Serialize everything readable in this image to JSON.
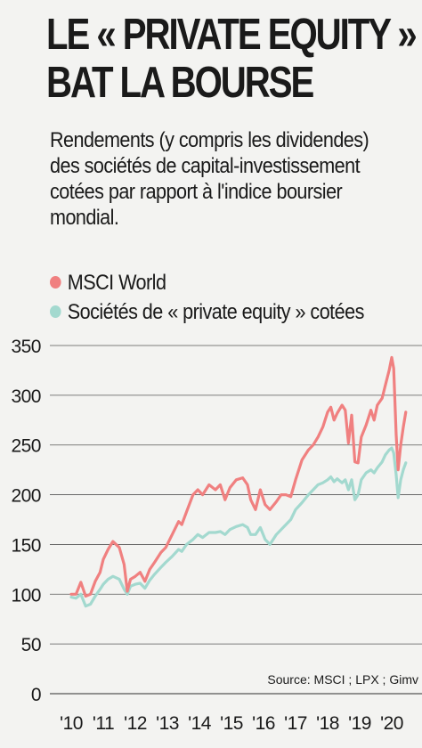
{
  "title_line1": "LE « PRIVATE EQUITY »",
  "title_line2": "BAT LA BOURSE",
  "subtitle": "Rendements (y compris les dividendes) des sociétés de capital-investissement cotées par rapport à l'indice boursier mondial.",
  "source": "Source: MSCI ; LPX ; Gimv",
  "colors": {
    "msci": "#f08080",
    "pe": "#a3d9cf",
    "grid": "#555555",
    "background": "#f3f3f1"
  },
  "chart_data": {
    "type": "line",
    "ylim": [
      0,
      350
    ],
    "yticks": [
      0,
      50,
      100,
      150,
      200,
      250,
      300,
      350
    ],
    "xlim": [
      2009.85,
      2020.5
    ],
    "xticks": [
      {
        "value": 2010,
        "label": "'10"
      },
      {
        "value": 2011,
        "label": "'11"
      },
      {
        "value": 2012,
        "label": "'12"
      },
      {
        "value": 2013,
        "label": "'13"
      },
      {
        "value": 2014,
        "label": "'14"
      },
      {
        "value": 2015,
        "label": "'15"
      },
      {
        "value": 2016,
        "label": "'16"
      },
      {
        "value": 2017,
        "label": "'17"
      },
      {
        "value": 2018,
        "label": "'18"
      },
      {
        "value": 2019,
        "label": "'19"
      },
      {
        "value": 2020,
        "label": "'20"
      }
    ],
    "grid": "horizontal",
    "legend": "top-left",
    "series": [
      {
        "name": "MSCI World",
        "color": "#f08080",
        "points": [
          [
            2010.0,
            100
          ],
          [
            2010.15,
            100
          ],
          [
            2010.3,
            112
          ],
          [
            2010.45,
            98
          ],
          [
            2010.6,
            100
          ],
          [
            2010.75,
            113
          ],
          [
            2010.9,
            122
          ],
          [
            2011.0,
            135
          ],
          [
            2011.15,
            145
          ],
          [
            2011.3,
            153
          ],
          [
            2011.5,
            147
          ],
          [
            2011.65,
            130
          ],
          [
            2011.75,
            103
          ],
          [
            2011.85,
            115
          ],
          [
            2012.0,
            118
          ],
          [
            2012.15,
            122
          ],
          [
            2012.3,
            113
          ],
          [
            2012.45,
            125
          ],
          [
            2012.6,
            132
          ],
          [
            2012.8,
            142
          ],
          [
            2012.95,
            147
          ],
          [
            2013.15,
            160
          ],
          [
            2013.35,
            173
          ],
          [
            2013.45,
            170
          ],
          [
            2013.6,
            183
          ],
          [
            2013.8,
            200
          ],
          [
            2013.95,
            205
          ],
          [
            2014.1,
            200
          ],
          [
            2014.3,
            210
          ],
          [
            2014.5,
            205
          ],
          [
            2014.65,
            210
          ],
          [
            2014.8,
            195
          ],
          [
            2014.95,
            207
          ],
          [
            2015.15,
            215
          ],
          [
            2015.35,
            217
          ],
          [
            2015.5,
            210
          ],
          [
            2015.6,
            195
          ],
          [
            2015.75,
            185
          ],
          [
            2015.9,
            205
          ],
          [
            2016.05,
            190
          ],
          [
            2016.2,
            185
          ],
          [
            2016.4,
            193
          ],
          [
            2016.55,
            200
          ],
          [
            2016.7,
            200
          ],
          [
            2016.85,
            198
          ],
          [
            2017.0,
            215
          ],
          [
            2017.2,
            235
          ],
          [
            2017.4,
            245
          ],
          [
            2017.55,
            250
          ],
          [
            2017.7,
            258
          ],
          [
            2017.85,
            268
          ],
          [
            2018.0,
            283
          ],
          [
            2018.1,
            288
          ],
          [
            2018.2,
            275
          ],
          [
            2018.3,
            282
          ],
          [
            2018.45,
            290
          ],
          [
            2018.55,
            285
          ],
          [
            2018.65,
            252
          ],
          [
            2018.75,
            280
          ],
          [
            2018.85,
            233
          ],
          [
            2018.95,
            232
          ],
          [
            2019.05,
            258
          ],
          [
            2019.2,
            270
          ],
          [
            2019.35,
            285
          ],
          [
            2019.45,
            275
          ],
          [
            2019.55,
            290
          ],
          [
            2019.7,
            297
          ],
          [
            2019.8,
            310
          ],
          [
            2019.92,
            325
          ],
          [
            2020.0,
            338
          ],
          [
            2020.06,
            327
          ],
          [
            2020.14,
            260
          ],
          [
            2020.2,
            225
          ],
          [
            2020.28,
            250
          ],
          [
            2020.36,
            268
          ],
          [
            2020.44,
            283
          ]
        ]
      },
      {
        "name": "Sociétés de « private equity » cotées",
        "color": "#a3d9cf",
        "points": [
          [
            2010.0,
            97
          ],
          [
            2010.15,
            96
          ],
          [
            2010.3,
            100
          ],
          [
            2010.45,
            88
          ],
          [
            2010.6,
            90
          ],
          [
            2010.75,
            98
          ],
          [
            2010.9,
            105
          ],
          [
            2011.0,
            110
          ],
          [
            2011.15,
            115
          ],
          [
            2011.3,
            118
          ],
          [
            2011.5,
            115
          ],
          [
            2011.65,
            105
          ],
          [
            2011.75,
            100
          ],
          [
            2011.85,
            108
          ],
          [
            2012.0,
            110
          ],
          [
            2012.15,
            111
          ],
          [
            2012.3,
            106
          ],
          [
            2012.45,
            114
          ],
          [
            2012.6,
            120
          ],
          [
            2012.8,
            127
          ],
          [
            2012.95,
            132
          ],
          [
            2013.15,
            138
          ],
          [
            2013.35,
            145
          ],
          [
            2013.45,
            143
          ],
          [
            2013.6,
            150
          ],
          [
            2013.8,
            155
          ],
          [
            2013.95,
            160
          ],
          [
            2014.1,
            157
          ],
          [
            2014.3,
            162
          ],
          [
            2014.5,
            162
          ],
          [
            2014.65,
            163
          ],
          [
            2014.8,
            160
          ],
          [
            2014.95,
            165
          ],
          [
            2015.15,
            168
          ],
          [
            2015.35,
            170
          ],
          [
            2015.5,
            167
          ],
          [
            2015.6,
            160
          ],
          [
            2015.75,
            160
          ],
          [
            2015.9,
            167
          ],
          [
            2016.05,
            155
          ],
          [
            2016.2,
            150
          ],
          [
            2016.4,
            160
          ],
          [
            2016.55,
            165
          ],
          [
            2016.7,
            170
          ],
          [
            2016.85,
            175
          ],
          [
            2017.0,
            185
          ],
          [
            2017.2,
            192
          ],
          [
            2017.4,
            200
          ],
          [
            2017.55,
            205
          ],
          [
            2017.7,
            210
          ],
          [
            2017.85,
            212
          ],
          [
            2018.0,
            215
          ],
          [
            2018.1,
            218
          ],
          [
            2018.2,
            213
          ],
          [
            2018.3,
            216
          ],
          [
            2018.45,
            212
          ],
          [
            2018.55,
            215
          ],
          [
            2018.65,
            205
          ],
          [
            2018.75,
            215
          ],
          [
            2018.85,
            195
          ],
          [
            2018.95,
            200
          ],
          [
            2019.05,
            215
          ],
          [
            2019.2,
            222
          ],
          [
            2019.35,
            225
          ],
          [
            2019.45,
            222
          ],
          [
            2019.55,
            227
          ],
          [
            2019.7,
            233
          ],
          [
            2019.8,
            240
          ],
          [
            2019.92,
            245
          ],
          [
            2020.0,
            247
          ],
          [
            2020.06,
            242
          ],
          [
            2020.14,
            220
          ],
          [
            2020.2,
            197
          ],
          [
            2020.28,
            215
          ],
          [
            2020.36,
            225
          ],
          [
            2020.44,
            232
          ]
        ]
      }
    ]
  }
}
